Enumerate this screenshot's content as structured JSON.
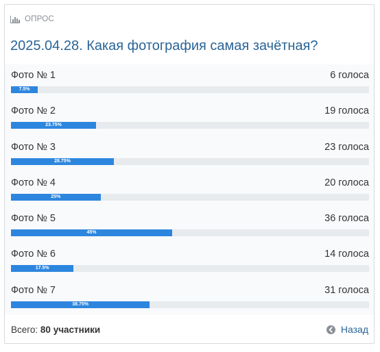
{
  "poll": {
    "header_label": "ОПРОС",
    "title": "2025.04.28. Какая фотография самая зачётная?",
    "options": [
      {
        "label": "Фото № 1",
        "votes": "6 голоса",
        "percent_label": "7.5%",
        "percent": 7.5
      },
      {
        "label": "Фото № 2",
        "votes": "19 голоса",
        "percent_label": "23.75%",
        "percent": 23.75
      },
      {
        "label": "Фото № 3",
        "votes": "23 голоса",
        "percent_label": "28.75%",
        "percent": 28.75
      },
      {
        "label": "Фото № 4",
        "votes": "20 голоса",
        "percent_label": "25%",
        "percent": 25
      },
      {
        "label": "Фото № 5",
        "votes": "36 голоса",
        "percent_label": "45%",
        "percent": 45
      },
      {
        "label": "Фото № 6",
        "votes": "14 голоса",
        "percent_label": "17.5%",
        "percent": 17.5
      },
      {
        "label": "Фото № 7",
        "votes": "31 голоса",
        "percent_label": "38.75%",
        "percent": 38.75
      }
    ],
    "total_label": "Всего:",
    "total_value": "80 участники",
    "back_label": "Назад"
  },
  "icons": {
    "header": "bar-chart-icon",
    "back": "arrow-left-circle-icon"
  },
  "colors": {
    "accent": "#2d86de",
    "title": "#2a6496",
    "track": "#e8ebee"
  }
}
